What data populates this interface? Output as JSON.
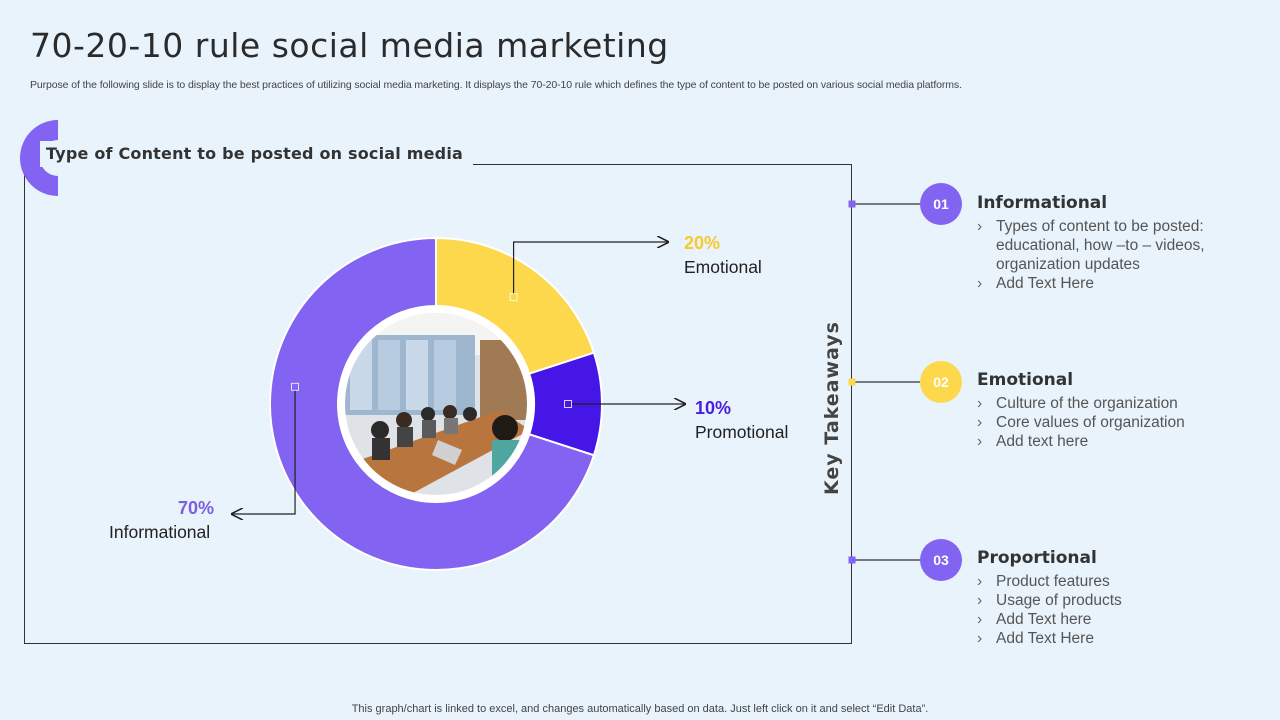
{
  "slide": {
    "title": "70-20-10 rule social media marketing",
    "subtitle": "Purpose of the following slide is to display the best practices of utilizing social media marketing. It displays the 70-20-10 rule which defines the type of content to be posted on various social media platforms.",
    "section_heading": "Type of Content to be posted on social media",
    "key_takeaways_label": "Key Takeaways",
    "footer": "This graph/chart is linked to excel,  and changes automatically based on data. Just left click on it and select “Edit Data”."
  },
  "chart_data": {
    "type": "pie",
    "variant": "donut",
    "categories": [
      "Emotional",
      "Promotional",
      "Informational"
    ],
    "values": [
      20,
      10,
      70
    ],
    "value_labels": [
      "20%",
      "10%",
      "70%"
    ],
    "colors": [
      "#fdd84c",
      "#4516e6",
      "#8363f1"
    ],
    "label_colors": [
      "#f7c92c",
      "#4a1de0",
      "#7b5ee6"
    ],
    "center": "photo of meeting room"
  },
  "takeaways": [
    {
      "number": "01",
      "color": "#8363f1",
      "title": "Informational",
      "bullets": [
        "Types of content to be posted: educational, how –to – videos, organization updates",
        "Add Text Here"
      ]
    },
    {
      "number": "02",
      "color": "#fdd84c",
      "title": "Emotional",
      "bullets": [
        "Culture  of the organization",
        "Core values of organization",
        "Add text here"
      ]
    },
    {
      "number": "03",
      "color": "#8363f1",
      "title": "Proportional",
      "bullets": [
        "Product features",
        "Usage of products",
        "Add Text here",
        "Add Text Here"
      ]
    }
  ],
  "icons": {
    "bullet": "chevron-right-icon",
    "center_image": "meeting-photo"
  }
}
